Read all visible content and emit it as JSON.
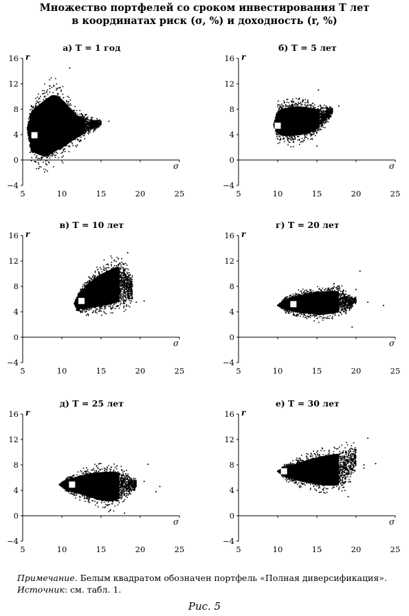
{
  "figure": {
    "title_line1": "Множество портфелей со сроком инвестирования T лет",
    "title_line2": "в координатах риск (σ, %) и доходность (r, %)",
    "note_label": "Примечание.",
    "note_text": "Белым квадратом обозначен портфель «Полная диверсификация».",
    "source_label": "Источник",
    "source_text": ": см. табл. 1.",
    "caption": "Рис. 5"
  },
  "colors": {
    "points": "#000000",
    "marker": "#ffffff",
    "background": "#ffffff"
  },
  "chart_data": [
    {
      "type": "scatter",
      "title": "а) T = 1 год",
      "xlabel": "σ",
      "ylabel": "r",
      "xlim": [
        5,
        25
      ],
      "ylim": [
        -4,
        16
      ],
      "xticks": [
        5,
        10,
        15,
        20,
        25
      ],
      "yticks": [
        -4,
        0,
        4,
        8,
        12,
        16
      ],
      "cloud": {
        "shape": "fan",
        "apex": [
          5.6,
          5.0
        ],
        "upper": [
          [
            6,
            9.5
          ],
          [
            7,
            11.0
          ],
          [
            8,
            12.5
          ],
          [
            9,
            13.2
          ],
          [
            10,
            12.0
          ],
          [
            11,
            10.0
          ],
          [
            12,
            8.0
          ],
          [
            13.5,
            7.0
          ],
          [
            15,
            6.3
          ]
        ],
        "lower": [
          [
            6,
            -0.5
          ],
          [
            7,
            -1.5
          ],
          [
            8,
            -2.5
          ],
          [
            9,
            -1.5
          ],
          [
            10,
            -0.5
          ],
          [
            11,
            1.0
          ],
          [
            12,
            2.5
          ],
          [
            13.5,
            4.0
          ],
          [
            15,
            5.3
          ]
        ]
      },
      "outliers": [
        [
          11,
          14.5
        ],
        [
          16,
          6.1
        ],
        [
          14,
          6.0
        ],
        [
          12.5,
          7.3
        ],
        [
          15,
          5.9
        ]
      ],
      "highlight": {
        "label": "Полная диверсификация",
        "x": 6.5,
        "y": 3.9
      }
    },
    {
      "type": "scatter",
      "title": "б) T = 5 лет",
      "xlabel": "σ",
      "ylabel": "r",
      "xlim": [
        5,
        25
      ],
      "ylim": [
        -4,
        16
      ],
      "xticks": [
        5,
        10,
        15,
        20,
        25
      ],
      "yticks": [
        -4,
        0,
        4,
        8,
        12,
        16
      ],
      "cloud": {
        "shape": "fan",
        "apex": [
          9.5,
          5.5
        ],
        "upper": [
          [
            10,
            9.0
          ],
          [
            11,
            9.6
          ],
          [
            12,
            9.8
          ],
          [
            13,
            9.8
          ],
          [
            14,
            9.5
          ],
          [
            15,
            9.0
          ],
          [
            16,
            8.6
          ],
          [
            17,
            8.4
          ]
        ],
        "lower": [
          [
            10,
            2.8
          ],
          [
            11,
            2.4
          ],
          [
            12,
            2.4
          ],
          [
            13,
            2.6
          ],
          [
            14,
            3.0
          ],
          [
            15,
            3.8
          ],
          [
            16,
            5.2
          ],
          [
            17,
            7.2
          ]
        ]
      },
      "outliers": [
        [
          17.8,
          8.5
        ],
        [
          15.2,
          11.0
        ],
        [
          15.0,
          2.2
        ],
        [
          16.2,
          8.2
        ]
      ],
      "highlight": {
        "label": "Полная диверсификация",
        "x": 10,
        "y": 5.4
      }
    },
    {
      "type": "scatter",
      "title": "в) T = 10 лет",
      "xlabel": "σ",
      "ylabel": "r",
      "xlim": [
        5,
        25
      ],
      "ylim": [
        -4,
        16
      ],
      "xticks": [
        5,
        10,
        15,
        20,
        25
      ],
      "yticks": [
        -4,
        0,
        4,
        8,
        12,
        16
      ],
      "cloud": {
        "shape": "fan",
        "apex": [
          11.6,
          5.3
        ],
        "upper": [
          [
            12,
            7.0
          ],
          [
            13,
            9.0
          ],
          [
            14,
            10.5
          ],
          [
            15,
            11.5
          ],
          [
            16,
            12.2
          ],
          [
            17,
            12.8
          ],
          [
            18,
            12.5
          ],
          [
            19,
            10.0
          ]
        ],
        "lower": [
          [
            12,
            3.8
          ],
          [
            13,
            3.4
          ],
          [
            14,
            3.3
          ],
          [
            15,
            3.3
          ],
          [
            16,
            3.4
          ],
          [
            17,
            3.8
          ],
          [
            18,
            4.2
          ],
          [
            19,
            4.8
          ]
        ]
      },
      "outliers": [
        [
          18.4,
          13.3
        ],
        [
          20.5,
          5.7
        ],
        [
          19.5,
          5.5
        ],
        [
          18.8,
          8.8
        ]
      ],
      "highlight": {
        "label": "Полная диверсификация",
        "x": 12.5,
        "y": 5.7
      }
    },
    {
      "type": "scatter",
      "title": "г) T = 20 лет",
      "xlabel": "σ",
      "ylabel": "r",
      "xlim": [
        5,
        25
      ],
      "ylim": [
        -4,
        16
      ],
      "xticks": [
        5,
        10,
        15,
        20,
        25
      ],
      "yticks": [
        -4,
        0,
        4,
        8,
        12,
        16
      ],
      "cloud": {
        "shape": "fan",
        "apex": [
          10.0,
          5.0
        ],
        "upper": [
          [
            11,
            6.4
          ],
          [
            12,
            7.1
          ],
          [
            13,
            7.6
          ],
          [
            14,
            8.0
          ],
          [
            15,
            8.2
          ],
          [
            16,
            8.3
          ],
          [
            17,
            8.4
          ],
          [
            18,
            8.2
          ],
          [
            19,
            7.0
          ],
          [
            20,
            6.3
          ]
        ],
        "lower": [
          [
            11,
            3.9
          ],
          [
            12,
            3.3
          ],
          [
            13,
            2.9
          ],
          [
            14,
            2.7
          ],
          [
            15,
            2.5
          ],
          [
            16,
            2.5
          ],
          [
            17,
            2.6
          ],
          [
            18,
            3.0
          ],
          [
            19,
            3.8
          ],
          [
            20,
            5.3
          ]
        ]
      },
      "outliers": [
        [
          23.5,
          5.0
        ],
        [
          20.5,
          10.4
        ],
        [
          19.5,
          1.6
        ],
        [
          21.5,
          5.5
        ],
        [
          20.0,
          7.5
        ]
      ],
      "highlight": {
        "label": "Полная диверсификация",
        "x": 12,
        "y": 5.2
      }
    },
    {
      "type": "scatter",
      "title": "д) T = 25 лет",
      "xlabel": "σ",
      "ylabel": "r",
      "xlim": [
        5,
        25
      ],
      "ylim": [
        -4,
        16
      ],
      "xticks": [
        5,
        10,
        15,
        20,
        25
      ],
      "yticks": [
        -4,
        0,
        4,
        8,
        12,
        16
      ],
      "cloud": {
        "shape": "fan",
        "apex": [
          9.7,
          4.9
        ],
        "upper": [
          [
            10.5,
            6.0
          ],
          [
            11.5,
            6.7
          ],
          [
            12.5,
            7.3
          ],
          [
            13.5,
            7.8
          ],
          [
            14.5,
            8.1
          ],
          [
            15.5,
            8.3
          ],
          [
            16.5,
            8.4
          ],
          [
            17.5,
            8.0
          ],
          [
            18.5,
            6.8
          ],
          [
            19.5,
            5.6
          ]
        ],
        "lower": [
          [
            10.5,
            3.7
          ],
          [
            11.5,
            3.0
          ],
          [
            12.5,
            2.4
          ],
          [
            13.5,
            1.8
          ],
          [
            14.5,
            1.3
          ],
          [
            15.5,
            0.9
          ],
          [
            16.5,
            0.8
          ],
          [
            17.5,
            1.5
          ],
          [
            18.5,
            3.0
          ],
          [
            19.5,
            4.2
          ]
        ]
      },
      "outliers": [
        [
          21.0,
          8.1
        ],
        [
          22.5,
          4.6
        ],
        [
          22.0,
          3.8
        ],
        [
          20.5,
          5.4
        ],
        [
          18.0,
          0.4
        ]
      ],
      "highlight": {
        "label": "Полная диверсификация",
        "x": 11.3,
        "y": 4.9
      }
    },
    {
      "type": "scatter",
      "title": "е) T = 30 лет",
      "xlabel": "σ",
      "ylabel": "r",
      "xlim": [
        5,
        25
      ],
      "ylim": [
        -4,
        16
      ],
      "xticks": [
        5,
        10,
        15,
        20,
        25
      ],
      "yticks": [
        -4,
        0,
        4,
        8,
        12,
        16
      ],
      "cloud": {
        "shape": "fan",
        "apex": [
          10.0,
          7.0
        ],
        "upper": [
          [
            11,
            8.2
          ],
          [
            12,
            8.8
          ],
          [
            13,
            9.4
          ],
          [
            14,
            10.0
          ],
          [
            15,
            10.5
          ],
          [
            16,
            10.9
          ],
          [
            17,
            11.2
          ],
          [
            18,
            11.3
          ],
          [
            19,
            11.5
          ],
          [
            20,
            11.6
          ]
        ],
        "lower": [
          [
            11,
            5.6
          ],
          [
            12,
            5.0
          ],
          [
            13,
            4.4
          ],
          [
            14,
            4.0
          ],
          [
            15,
            3.6
          ],
          [
            16,
            3.3
          ],
          [
            17,
            3.2
          ],
          [
            18,
            3.3
          ],
          [
            19,
            4.5
          ],
          [
            20,
            7.0
          ]
        ]
      },
      "outliers": [
        [
          21.5,
          12.2
        ],
        [
          22.5,
          8.2
        ],
        [
          21.0,
          8.0
        ],
        [
          19.0,
          3.0
        ],
        [
          21.0,
          7.5
        ]
      ],
      "highlight": {
        "label": "Полная диверсификация",
        "x": 10.8,
        "y": 7.0
      }
    }
  ]
}
